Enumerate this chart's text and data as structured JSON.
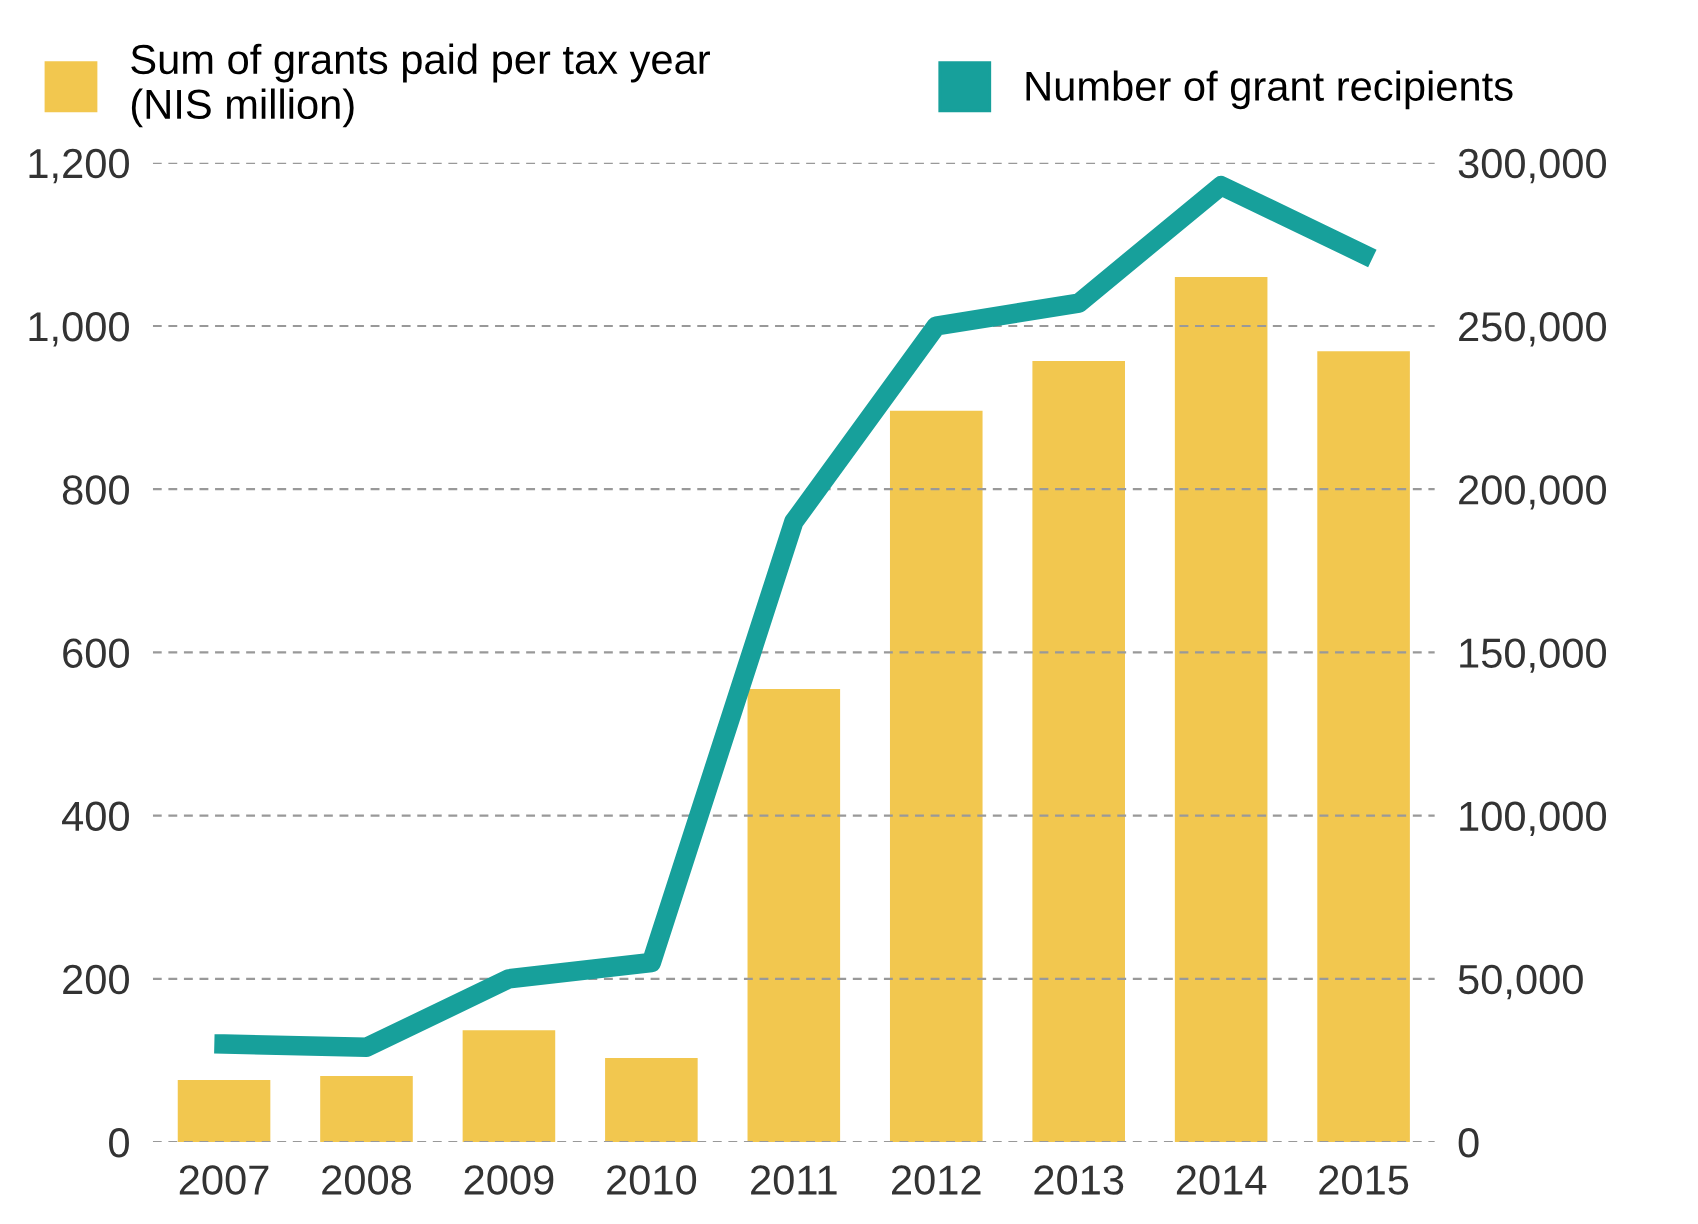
{
  "chart_data": {
    "type": "bar",
    "categories": [
      "2007",
      "2008",
      "2009",
      "2010",
      "2011",
      "2012",
      "2013",
      "2014",
      "2015"
    ],
    "series": [
      {
        "name": "Sum of grants paid per tax year\n(NIS million)",
        "color": "#f2c74f",
        "values": [
          76,
          81,
          137,
          103,
          555,
          896,
          957,
          1060,
          969
        ]
      },
      {
        "name": "Number of grant recipients",
        "type": "line",
        "axis": "y2",
        "color": "#17a09b",
        "values": [
          30000,
          29000,
          50000,
          55000,
          190000,
          250000,
          257000,
          293000,
          272000
        ]
      }
    ],
    "ylim": [
      0,
      1200
    ],
    "yticks": [
      0,
      {
        "value": 200,
        "label": "200"
      },
      {
        "value": 400,
        "label": "400"
      },
      {
        "value": 600,
        "label": "600"
      },
      {
        "value": 800,
        "label": "800"
      },
      {
        "value": 1000,
        "label": "1,000"
      },
      {
        "value": 1200,
        "label": "1,200"
      }
    ],
    "y2lim": [
      0,
      300000
    ],
    "y2ticks": [
      0,
      {
        "value": 50000,
        "label": "50,000"
      },
      {
        "value": 100000,
        "label": "100,000"
      },
      {
        "value": 150000,
        "label": "150,000"
      },
      {
        "value": 200000,
        "label": "200,000"
      },
      {
        "value": 250000,
        "label": "250,000"
      },
      {
        "value": 300000,
        "label": "300,000"
      }
    ],
    "grid": "y",
    "legend": "top",
    "marker": "none",
    "line_style": "solid"
  }
}
